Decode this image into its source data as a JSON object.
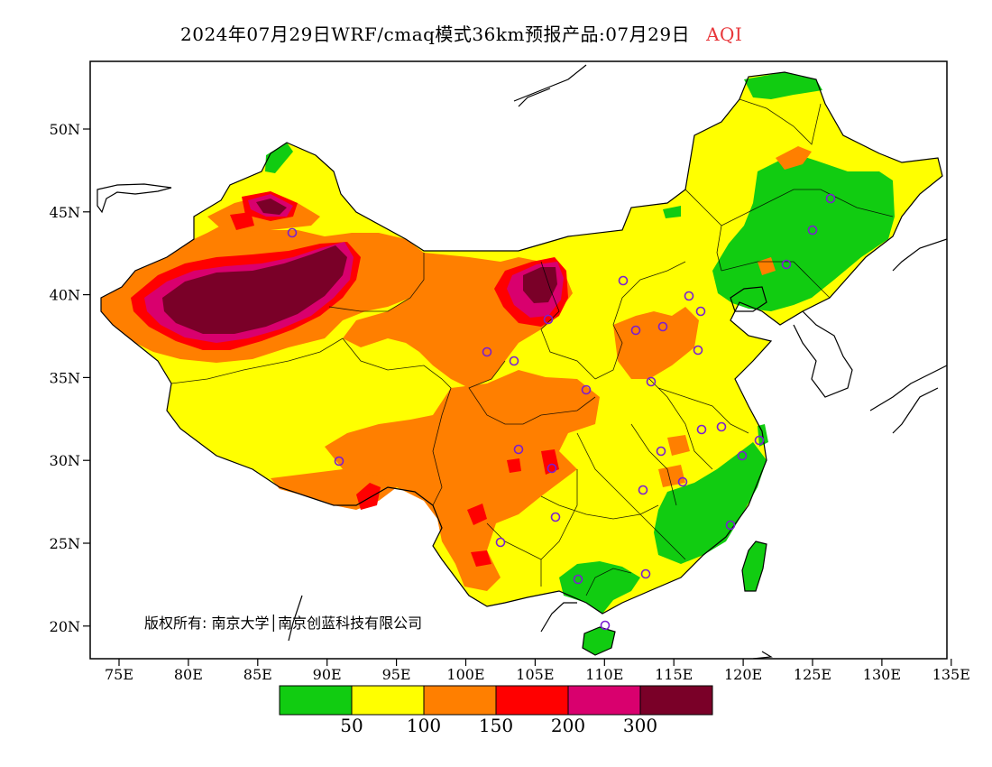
{
  "title": {
    "main": "2024年07月29日WRF/cmaq模式36km预报产品:07月29日",
    "metric": "AQI",
    "metric_color": "#e8363a"
  },
  "axes": {
    "x_ticks": [
      "75E",
      "80E",
      "85E",
      "90E",
      "95E",
      "100E",
      "105E",
      "110E",
      "115E",
      "120E",
      "125E",
      "130E",
      "135E"
    ],
    "y_ticks": [
      "50N",
      "45N",
      "40N",
      "35N",
      "30N",
      "25N",
      "20N"
    ],
    "lon_range": [
      73,
      135
    ],
    "lat_range": [
      18,
      54
    ]
  },
  "copyright": "版权所有: 南京大学│南京创蓝科技有限公司",
  "legend": {
    "colors": [
      "#11cc11",
      "#ffff00",
      "#ff7f00",
      "#ff0000",
      "#d9006e",
      "#7a0028"
    ],
    "labels": [
      "50",
      "100",
      "150",
      "200",
      "300"
    ]
  },
  "stations_color": "#7a1fd0"
}
